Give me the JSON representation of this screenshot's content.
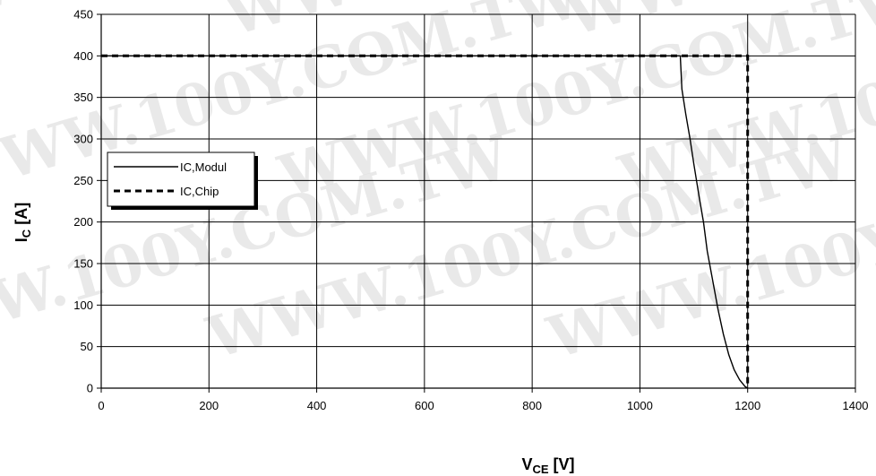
{
  "chart_data": {
    "type": "line",
    "xlabel": {
      "main": "V",
      "sub": "CE",
      "unit": " [V]"
    },
    "ylabel": {
      "main": "I",
      "sub": "C",
      "unit": " [A]"
    },
    "xlim": [
      0,
      1400
    ],
    "ylim": [
      0,
      450
    ],
    "x_ticks": [
      0,
      200,
      400,
      600,
      800,
      1000,
      1200,
      1400
    ],
    "y_ticks": [
      0,
      50,
      100,
      150,
      200,
      250,
      300,
      350,
      400,
      450
    ],
    "grid": true,
    "legend_position": "left",
    "series": [
      {
        "name": "IC,Modul",
        "style": "solid",
        "color": "#000000",
        "points": [
          [
            0,
            400
          ],
          [
            1075,
            400
          ],
          [
            1078,
            360
          ],
          [
            1085,
            330
          ],
          [
            1093,
            300
          ],
          [
            1100,
            270
          ],
          [
            1105,
            250
          ],
          [
            1110,
            230
          ],
          [
            1118,
            200
          ],
          [
            1125,
            165
          ],
          [
            1135,
            130
          ],
          [
            1145,
            95
          ],
          [
            1155,
            65
          ],
          [
            1165,
            40
          ],
          [
            1175,
            22
          ],
          [
            1185,
            10
          ],
          [
            1195,
            2
          ],
          [
            1200,
            0
          ]
        ]
      },
      {
        "name": "IC,Chip",
        "style": "dashed",
        "color": "#000000",
        "points": [
          [
            0,
            400
          ],
          [
            1200,
            400
          ],
          [
            1200,
            0
          ]
        ]
      }
    ]
  },
  "watermark": "WWW.100Y.COM.TW"
}
